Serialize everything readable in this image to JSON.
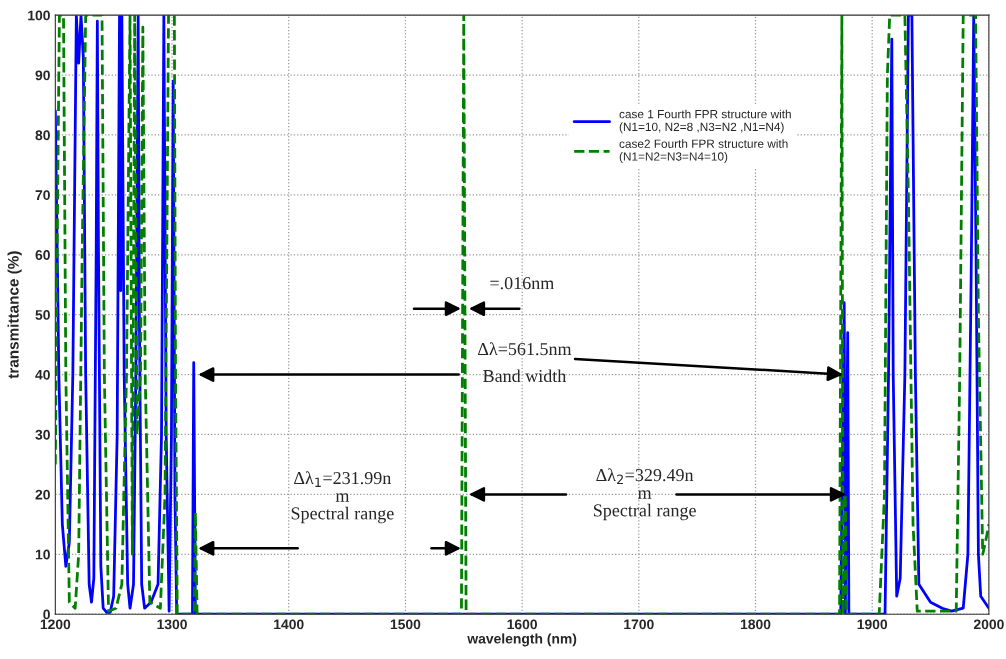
{
  "chart_data": {
    "type": "line",
    "xlabel": "wavelength (nm)",
    "ylabel": "transmittance (%)",
    "xlim": [
      1200,
      2000
    ],
    "ylim": [
      0,
      100
    ],
    "xticks": [
      1200,
      1300,
      1400,
      1500,
      1600,
      1700,
      1800,
      1900,
      2000
    ],
    "yticks": [
      0,
      10,
      20,
      30,
      40,
      50,
      60,
      70,
      80,
      90,
      100
    ],
    "grid": true,
    "legend": "top right",
    "marker": "none",
    "annotations": [
      "=.016nm",
      {
        "text": "Δλ=561.5nm",
        "x": 1875,
        "y": 40
      },
      "Band width",
      "Δλ$_{1}$=231.99n\nm\nSpectral range",
      {
        "text": "Δλ$_{2}$=329.49n\nm\nSpectral range",
        "x": 1880,
        "y": 20
      }
    ],
    "series": [
      {
        "name": "case 1 Fourth FPR structure with\n(N1=10, N2=8 ,N3=N2 ,N1=N4)",
        "color": "#0000ff",
        "line_style": "solid",
        "x": [
          1200,
          1203,
          1206,
          1209,
          1212,
          1215,
          1218,
          1220,
          1222,
          1224,
          1226,
          1229,
          1231,
          1233,
          1235,
          1236,
          1237,
          1239,
          1241,
          1244,
          1247,
          1250,
          1253,
          1255,
          1256,
          1257,
          1259,
          1262,
          1264,
          1267,
          1269,
          1271,
          1272,
          1274,
          1276.5,
          1282,
          1288,
          1291,
          1293,
          1295,
          1297.5,
          1299.5,
          1301,
          1302.5,
          1304,
          1317.5,
          1318.6,
          1320,
          1548,
          1550,
          1552,
          1873,
          1875,
          1876,
          1877,
          1879,
          1880,
          1911,
          1914,
          1916.8,
          1918,
          1921,
          1924,
          1928,
          1931,
          1934,
          1937,
          1940,
          1950,
          1960,
          1968,
          1978,
          1982,
          1985,
          1987,
          1989,
          1991,
          1993,
          2000
        ],
        "values": [
          84,
          40,
          15,
          8,
          12,
          40,
          100,
          92,
          100,
          93,
          40,
          5,
          2,
          6,
          60,
          99,
          60,
          8,
          1,
          0.3,
          0.3,
          3,
          30,
          100,
          54,
          100,
          40,
          5,
          1,
          5,
          40,
          100,
          50,
          5,
          1,
          2,
          5,
          30,
          100,
          30,
          0.5,
          30,
          89,
          20,
          0,
          0,
          42,
          0,
          0,
          null,
          0,
          0,
          35,
          52,
          0,
          47,
          0,
          0,
          40,
          96,
          40,
          3,
          6,
          40,
          100,
          100,
          40,
          5,
          2,
          1,
          0.5,
          1,
          10,
          60,
          100,
          60,
          10,
          3,
          1
        ]
      },
      {
        "name": "case2 Fourth FPR structure with\n(N1=N2=N3=N4=10)",
        "color": "#007f00",
        "line_style": "dashed",
        "x": [
          1200,
          1202,
          1203.5,
          1207,
          1209,
          1212,
          1217,
          1220,
          1223,
          1226,
          1240,
          1242,
          1245.6,
          1252,
          1257,
          1261,
          1264,
          1266,
          1268,
          1270,
          1273,
          1275,
          1277,
          1281,
          1290,
          1294,
          1297,
          1302,
          1303,
          1304.5,
          1319,
          1320,
          1321.5,
          1548,
          1550,
          1552,
          1872,
          1874,
          1875,
          1877,
          1878,
          1906,
          1910.5,
          1913,
          1915,
          1928,
          1931,
          1935,
          1938.6,
          1972,
          1975,
          1978,
          1988.6,
          1991,
          1994.7,
          1997,
          2000
        ],
        "values": [
          25,
          70,
          100,
          100,
          40,
          2,
          1,
          10,
          60,
          100,
          100,
          40,
          0.5,
          1,
          5,
          40,
          100,
          10,
          100,
          30,
          40,
          98,
          40,
          2,
          1,
          20,
          100,
          100,
          40,
          0,
          0,
          17,
          0,
          0,
          100,
          0,
          0,
          100,
          0,
          20,
          0,
          0,
          20,
          90,
          100,
          100,
          70,
          15,
          0.5,
          0.5,
          40,
          100,
          100,
          50,
          10,
          12,
          15
        ]
      }
    ]
  }
}
